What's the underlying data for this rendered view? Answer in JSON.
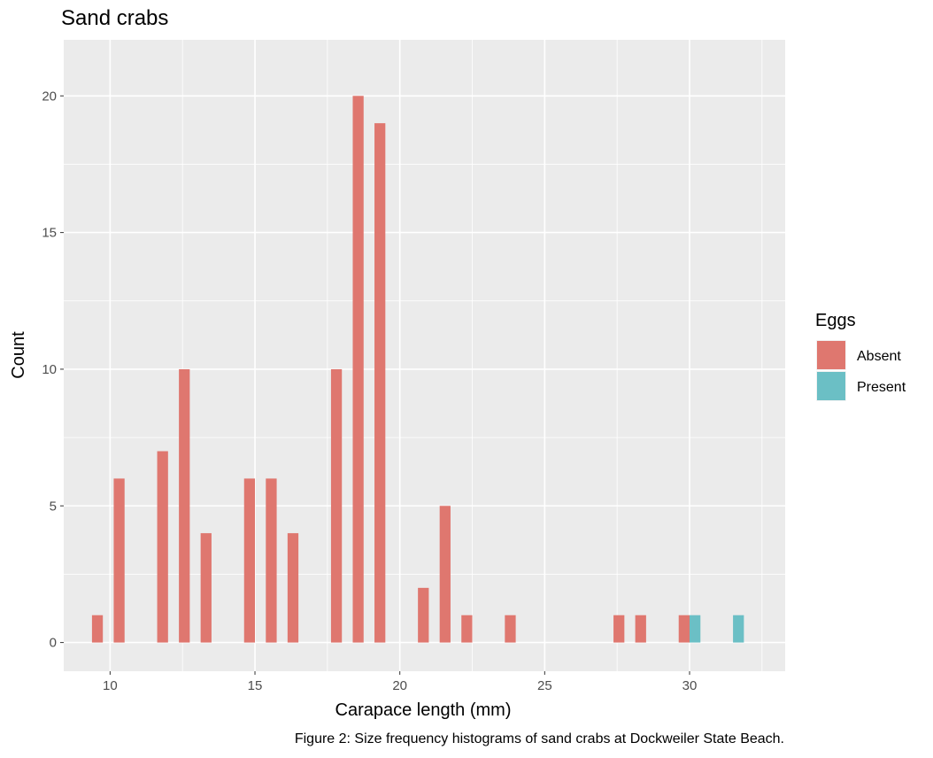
{
  "chart_data": {
    "type": "bar",
    "title": "Sand crabs",
    "xlabel": "Carapace length (mm)",
    "ylabel": "Count",
    "caption": "Figure 2: Size frequency histograms of sand crabs at Dockweiler State Beach.",
    "xlim": [
      8.4,
      33.3
    ],
    "ylim": [
      -1.05,
      22.05
    ],
    "x_ticks": [
      10,
      15,
      20,
      25,
      30
    ],
    "y_ticks": [
      0,
      5,
      10,
      15,
      20
    ],
    "bin_width": 0.75,
    "grid": true,
    "legend": {
      "title": "Eggs",
      "position": "right",
      "entries": [
        {
          "label": "Absent",
          "color": "#df776f"
        },
        {
          "label": "Present",
          "color": "#6bbfc5"
        }
      ]
    },
    "series": [
      {
        "name": "Absent",
        "color": "#df776f",
        "x": [
          9.75,
          10.5,
          12.0,
          12.75,
          13.5,
          15.0,
          15.75,
          16.5,
          18.0,
          18.75,
          19.5,
          21.0,
          21.75,
          22.5,
          24.0,
          27.75,
          28.5,
          30.0
        ],
        "values": [
          1,
          6,
          7,
          10,
          4,
          6,
          6,
          4,
          10,
          20,
          19,
          2,
          5,
          1,
          1,
          1,
          1,
          1
        ]
      },
      {
        "name": "Present",
        "color": "#6bbfc5",
        "x": [
          30.0,
          31.5
        ],
        "values": [
          1,
          1
        ]
      }
    ]
  }
}
